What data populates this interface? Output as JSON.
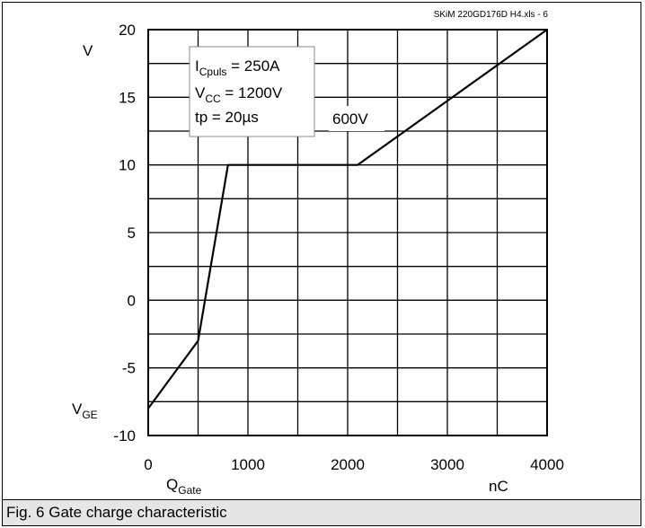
{
  "chart_data": {
    "type": "line",
    "x_ticks": [
      "0",
      "1000",
      "2000",
      "3000",
      "4000"
    ],
    "y_ticks": [
      "20",
      "15",
      "10",
      "5",
      "0",
      "-5",
      "-10"
    ],
    "xlim": [
      0,
      4000
    ],
    "ylim": [
      -10,
      20
    ],
    "x_minor_step": 500,
    "y_minor_step": 2.5,
    "grid": true,
    "series": [
      {
        "x": [
          0,
          500,
          800,
          2100,
          4000
        ],
        "y": [
          -8,
          -3,
          10,
          10,
          20
        ]
      }
    ],
    "ylabel_unit": "V",
    "ylabel_symbol": "V",
    "ylabel_subscript": "GE",
    "xlabel_symbol": "Q",
    "xlabel_subscript": "Gate",
    "xlabel_unit": "nC",
    "source_note": "SKiM 220GD176D H4.xls - 6",
    "annotation_box": {
      "line1_symbol": "I",
      "line1_subscript": "Cpuls",
      "line1_value": " = 250A",
      "line2_symbol": "V",
      "line2_subscript": "CC",
      "line2_value": " = 1200V",
      "line3": "tp = 20µs"
    },
    "curve_label": "600V",
    "caption": "Fig. 6 Gate charge characteristic"
  }
}
